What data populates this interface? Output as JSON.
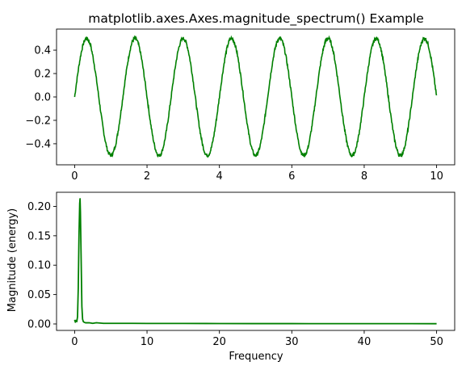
{
  "chart_data": [
    {
      "type": "line",
      "title": "matplotlib.axes.Axes.magnitude_spectrum() Example",
      "xlabel": "",
      "ylabel": "",
      "xlim": [
        -0.5,
        10.5
      ],
      "ylim": [
        -0.58,
        0.58
      ],
      "xticks": [
        0,
        2,
        4,
        6,
        8,
        10
      ],
      "xtick_labels": [
        "0",
        "2",
        "4",
        "6",
        "8",
        "10"
      ],
      "yticks": [
        -0.4,
        -0.2,
        0.0,
        0.2,
        0.4
      ],
      "ytick_labels": [
        "−0.4",
        "−0.2",
        "0.0",
        "0.2",
        "0.4"
      ],
      "grid": false,
      "series": [
        {
          "color": "#008000",
          "x_range": [
            0,
            10
          ],
          "amplitude": 0.5,
          "frequency": 0.75,
          "noise": 0.015
        }
      ]
    },
    {
      "type": "line",
      "title": "",
      "xlabel": "Frequency",
      "ylabel": "Magnitude (energy)",
      "xlim": [
        -2.5,
        52.5
      ],
      "ylim": [
        -0.011,
        0.224
      ],
      "xticks": [
        0,
        10,
        20,
        30,
        40,
        50
      ],
      "xtick_labels": [
        "0",
        "10",
        "20",
        "30",
        "40",
        "50"
      ],
      "yticks": [
        0.0,
        0.05,
        0.1,
        0.15,
        0.2
      ],
      "ytick_labels": [
        "0.00",
        "0.05",
        "0.10",
        "0.15",
        "0.20"
      ],
      "grid": false,
      "series": [
        {
          "color": "#008000",
          "x": [
            0,
            0.1,
            0.2,
            0.3,
            0.4,
            0.5,
            0.6,
            0.7,
            0.75,
            0.8,
            0.9,
            1.0,
            1.1,
            1.2,
            1.3,
            1.5,
            1.8,
            2.0,
            2.5,
            3,
            4,
            5,
            6,
            8,
            10,
            15,
            20,
            25,
            30,
            35,
            40,
            45,
            50
          ],
          "y": [
            0.007,
            0.003,
            0.006,
            0.004,
            0.012,
            0.06,
            0.15,
            0.205,
            0.213,
            0.19,
            0.11,
            0.03,
            0.008,
            0.004,
            0.003,
            0.002,
            0.002,
            0.002,
            0.001,
            0.002,
            0.001,
            0.001,
            0.001,
            0.001,
            0.0008,
            0.0008,
            0.0007,
            0.0006,
            0.0006,
            0.0005,
            0.0005,
            0.0005,
            0.0004
          ]
        }
      ]
    }
  ]
}
